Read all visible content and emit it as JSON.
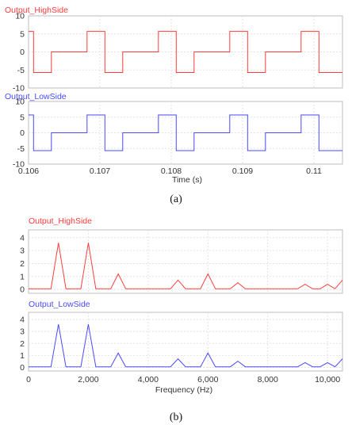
{
  "chart_data": [
    {
      "type": "line",
      "panel": "a",
      "caption": "(a)",
      "xlabel": "Time (s)",
      "xlim": [
        0.106,
        0.1104
      ],
      "xticks": [
        0.106,
        0.107,
        0.108,
        0.109,
        0.11
      ],
      "xtick_labels": [
        "0.106",
        "0.107",
        "0.108",
        "0.109",
        "0.11"
      ],
      "grid": true,
      "subplots": [
        {
          "name": "Output_HighSide",
          "color": "#ff3b3b",
          "ylim": [
            -10,
            10
          ],
          "yticks": [
            10,
            5,
            0,
            -5,
            -10
          ],
          "ytick_labels": [
            "10",
            "5",
            "0",
            "-5",
            "-10"
          ],
          "x": [
            0.106,
            0.10607,
            0.10607,
            0.10632,
            0.10632,
            0.10682,
            0.10682,
            0.10707,
            0.10707,
            0.10732,
            0.10732,
            0.10782,
            0.10782,
            0.10807,
            0.10807,
            0.10832,
            0.10832,
            0.10882,
            0.10882,
            0.10907,
            0.10907,
            0.10932,
            0.10932,
            0.10982,
            0.10982,
            0.11007,
            0.11007,
            0.1104
          ],
          "y": [
            5.7,
            5.7,
            -5.7,
            -5.7,
            0,
            0,
            5.7,
            5.7,
            -5.7,
            -5.7,
            0,
            0,
            5.7,
            5.7,
            -5.7,
            -5.7,
            0,
            0,
            5.7,
            5.7,
            -5.7,
            -5.7,
            0,
            0,
            5.7,
            5.7,
            -5.7,
            -5.7
          ]
        },
        {
          "name": "Output_LowSide",
          "color": "#4a4aff",
          "ylim": [
            -10,
            10
          ],
          "yticks": [
            10,
            5,
            0,
            -5,
            -10
          ],
          "ytick_labels": [
            "10",
            "5",
            "0",
            "-5",
            "-10"
          ],
          "x": [
            0.106,
            0.10607,
            0.10607,
            0.10632,
            0.10632,
            0.10682,
            0.10682,
            0.10707,
            0.10707,
            0.10732,
            0.10732,
            0.10782,
            0.10782,
            0.10807,
            0.10807,
            0.10832,
            0.10832,
            0.10882,
            0.10882,
            0.10907,
            0.10907,
            0.10932,
            0.10932,
            0.10982,
            0.10982,
            0.11007,
            0.11007,
            0.1104
          ],
          "y": [
            5.7,
            5.7,
            -5.7,
            -5.7,
            0,
            0,
            5.7,
            5.7,
            -5.7,
            -5.7,
            0,
            0,
            5.7,
            5.7,
            -5.7,
            -5.7,
            0,
            0,
            5.7,
            5.7,
            -5.7,
            -5.7,
            0,
            0,
            5.7,
            5.7,
            -5.7,
            -5.7
          ]
        }
      ]
    },
    {
      "type": "line",
      "panel": "b",
      "caption": "(b)",
      "xlabel": "Frequency (Hz)",
      "xlim": [
        0,
        10500
      ],
      "xticks": [
        0,
        2000,
        4000,
        6000,
        8000,
        10000
      ],
      "xtick_labels": [
        "0",
        "2,000",
        "4,000",
        "6,000",
        "8,000",
        "10,000"
      ],
      "grid": true,
      "subplots": [
        {
          "name": "Output_HighSide",
          "color": "#ff3b3b",
          "ylim": [
            -0.3,
            4.6
          ],
          "yticks": [
            4,
            3,
            2,
            1,
            0
          ],
          "ytick_labels": [
            "4",
            "3",
            "2",
            "1",
            "0"
          ],
          "x": [
            0,
            250,
            500,
            750,
            1000,
            1250,
            1500,
            1750,
            2000,
            2250,
            2500,
            2750,
            3000,
            3250,
            3500,
            3750,
            4000,
            4250,
            4500,
            4750,
            5000,
            5250,
            5500,
            5750,
            6000,
            6250,
            6500,
            6750,
            7000,
            7250,
            7500,
            7750,
            8000,
            8250,
            8500,
            8750,
            9000,
            9250,
            9500,
            9750,
            10000,
            10250,
            10500
          ],
          "y": [
            0.05,
            0.05,
            0.05,
            0.05,
            3.6,
            0.05,
            0.05,
            0.05,
            3.6,
            0.05,
            0.05,
            0.05,
            1.2,
            0.05,
            0.05,
            0.05,
            0.05,
            0.05,
            0.05,
            0.05,
            0.72,
            0.05,
            0.05,
            0.05,
            1.2,
            0.05,
            0.05,
            0.05,
            0.52,
            0.05,
            0.05,
            0.05,
            0.05,
            0.05,
            0.05,
            0.05,
            0.05,
            0.4,
            0.05,
            0.05,
            0.4,
            0.05,
            0.72
          ]
        },
        {
          "name": "Output_LowSide",
          "color": "#4a4aff",
          "ylim": [
            -0.3,
            4.6
          ],
          "yticks": [
            4,
            3,
            2,
            1,
            0
          ],
          "ytick_labels": [
            "4",
            "3",
            "2",
            "1",
            "0"
          ],
          "x": [
            0,
            250,
            500,
            750,
            1000,
            1250,
            1500,
            1750,
            2000,
            2250,
            2500,
            2750,
            3000,
            3250,
            3500,
            3750,
            4000,
            4250,
            4500,
            4750,
            5000,
            5250,
            5500,
            5750,
            6000,
            6250,
            6500,
            6750,
            7000,
            7250,
            7500,
            7750,
            8000,
            8250,
            8500,
            8750,
            9000,
            9250,
            9500,
            9750,
            10000,
            10250,
            10500
          ],
          "y": [
            0.05,
            0.05,
            0.05,
            0.05,
            3.6,
            0.05,
            0.05,
            0.05,
            3.6,
            0.05,
            0.05,
            0.05,
            1.2,
            0.05,
            0.05,
            0.05,
            0.05,
            0.05,
            0.05,
            0.05,
            0.72,
            0.05,
            0.05,
            0.05,
            1.2,
            0.05,
            0.05,
            0.05,
            0.52,
            0.05,
            0.05,
            0.05,
            0.05,
            0.05,
            0.05,
            0.05,
            0.05,
            0.4,
            0.05,
            0.05,
            0.4,
            0.05,
            0.72
          ]
        }
      ]
    }
  ]
}
